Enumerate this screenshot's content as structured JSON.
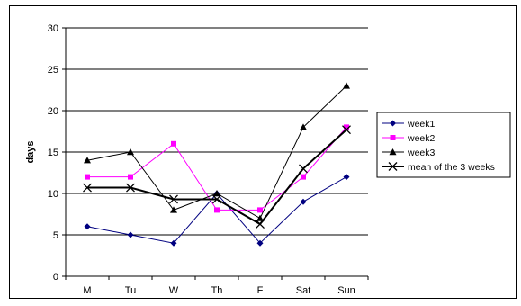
{
  "chart_data": {
    "type": "line",
    "title": "",
    "xlabel": "",
    "ylabel": "days",
    "ylim": [
      0,
      30
    ],
    "yticks": [
      0,
      5,
      10,
      15,
      20,
      25,
      30
    ],
    "grid": "horizontal",
    "legend_position": "right",
    "categories": [
      "M",
      "Tu",
      "W",
      "Th",
      "F",
      "Sat",
      "Sun"
    ],
    "series": [
      {
        "name": "week1",
        "color": "#000080",
        "marker": "diamond",
        "width": 1,
        "values": [
          6,
          5,
          4,
          10,
          4,
          9,
          12
        ]
      },
      {
        "name": "week2",
        "color": "#FF00FF",
        "marker": "square",
        "width": 1,
        "values": [
          12,
          12,
          16,
          8,
          8,
          12,
          18
        ]
      },
      {
        "name": "week3",
        "color": "#000000",
        "marker": "triangle",
        "width": 1,
        "values": [
          14,
          15,
          8,
          10,
          7,
          18,
          23
        ]
      },
      {
        "name": "mean of the 3 weeks",
        "color": "#000000",
        "marker": "x",
        "width": 2,
        "values": [
          10.7,
          10.7,
          9.3,
          9.3,
          6.3,
          13,
          17.7
        ]
      }
    ]
  }
}
